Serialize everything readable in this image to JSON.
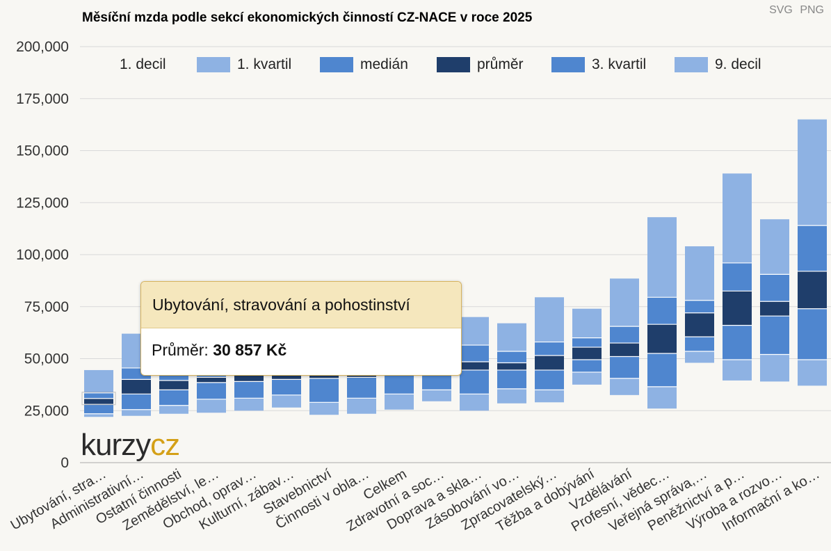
{
  "export": {
    "svg": "SVG",
    "png": "PNG"
  },
  "colors": {
    "outer": "#8eb2e3",
    "inner": "#4f86cf",
    "mean": "#1f3e6b",
    "grid": "#d9d9d9"
  },
  "chart_data": {
    "type": "bar",
    "title": "Měsíční mzda podle sekcí ekonomických činností CZ-NACE v roce 2025",
    "xlabel": "",
    "ylabel": "",
    "ylim": [
      0,
      200000
    ],
    "yticks": [
      "0",
      "25,000",
      "50,000",
      "75,000",
      "100,000",
      "125,000",
      "150,000",
      "175,000",
      "200,000"
    ],
    "legend": [
      "1. decil",
      "1. kvartil",
      "medián",
      "průměr",
      "3. kvartil",
      "9. decil"
    ],
    "legend_position": "top",
    "grid": true,
    "categories": [
      "Ubytování, stra…",
      "Administrativní…",
      "Ostatní činnosti",
      "Zemědělství, le…",
      "Obchod, oprav…",
      "Kulturní, zábav…",
      "Stavebnictví",
      "Činnosti v obla…",
      "Celkem",
      "Zdravotní a soc…",
      "Doprava a skla…",
      "Zásobování vo…",
      "Zpracovatelský…",
      "Těžba a dobývání",
      "Vzdělávání",
      "Profesní, vědec…",
      "Veřejná správa,…",
      "Peněžnictví a p…",
      "Výroba a rozvo…",
      "Informační a ko…"
    ],
    "series": [
      {
        "name": "1. decil",
        "values": [
          22000,
          22500,
          23500,
          24000,
          25000,
          26500,
          23000,
          23500,
          25500,
          29500,
          25000,
          28500,
          29000,
          37500,
          32500,
          26000,
          48000,
          39500,
          39000,
          37000
        ]
      },
      {
        "name": "1. kvartil",
        "values": [
          23500,
          25500,
          27500,
          30500,
          31000,
          32500,
          29000,
          31000,
          33000,
          35000,
          33000,
          35500,
          35000,
          43500,
          40500,
          36500,
          53500,
          49500,
          52000,
          49500
        ]
      },
      {
        "name": "medián",
        "values": [
          28000,
          33000,
          35000,
          38500,
          39000,
          40000,
          40500,
          41000,
          42000,
          42500,
          44500,
          44500,
          44500,
          49500,
          51000,
          52500,
          60500,
          66000,
          70500,
          74000
        ]
      },
      {
        "name": "průměr",
        "values": [
          30857,
          40000,
          39500,
          41000,
          42500,
          42000,
          42000,
          43000,
          44500,
          44500,
          48500,
          48000,
          51500,
          55500,
          57500,
          66500,
          72000,
          82500,
          77500,
          92000
        ]
      },
      {
        "name": "3. kvartil",
        "values": [
          33500,
          45500,
          44000,
          47000,
          47000,
          47500,
          50500,
          50000,
          52000,
          51500,
          56500,
          53500,
          58000,
          60000,
          65500,
          79500,
          78000,
          96000,
          90500,
          114000
        ]
      },
      {
        "name": "9. decil",
        "values": [
          44500,
          62000,
          58000,
          57000,
          60000,
          63500,
          62500,
          63500,
          65000,
          63500,
          70000,
          67000,
          79500,
          74000,
          88500,
          118000,
          104000,
          139000,
          117000,
          165000
        ]
      }
    ]
  },
  "tooltip": {
    "category": "Ubytování, stravování a pohostinství",
    "label": "Průměr:",
    "value": "30 857 Kč"
  },
  "logo": {
    "part1": "kurzy",
    "part2": "cz"
  }
}
